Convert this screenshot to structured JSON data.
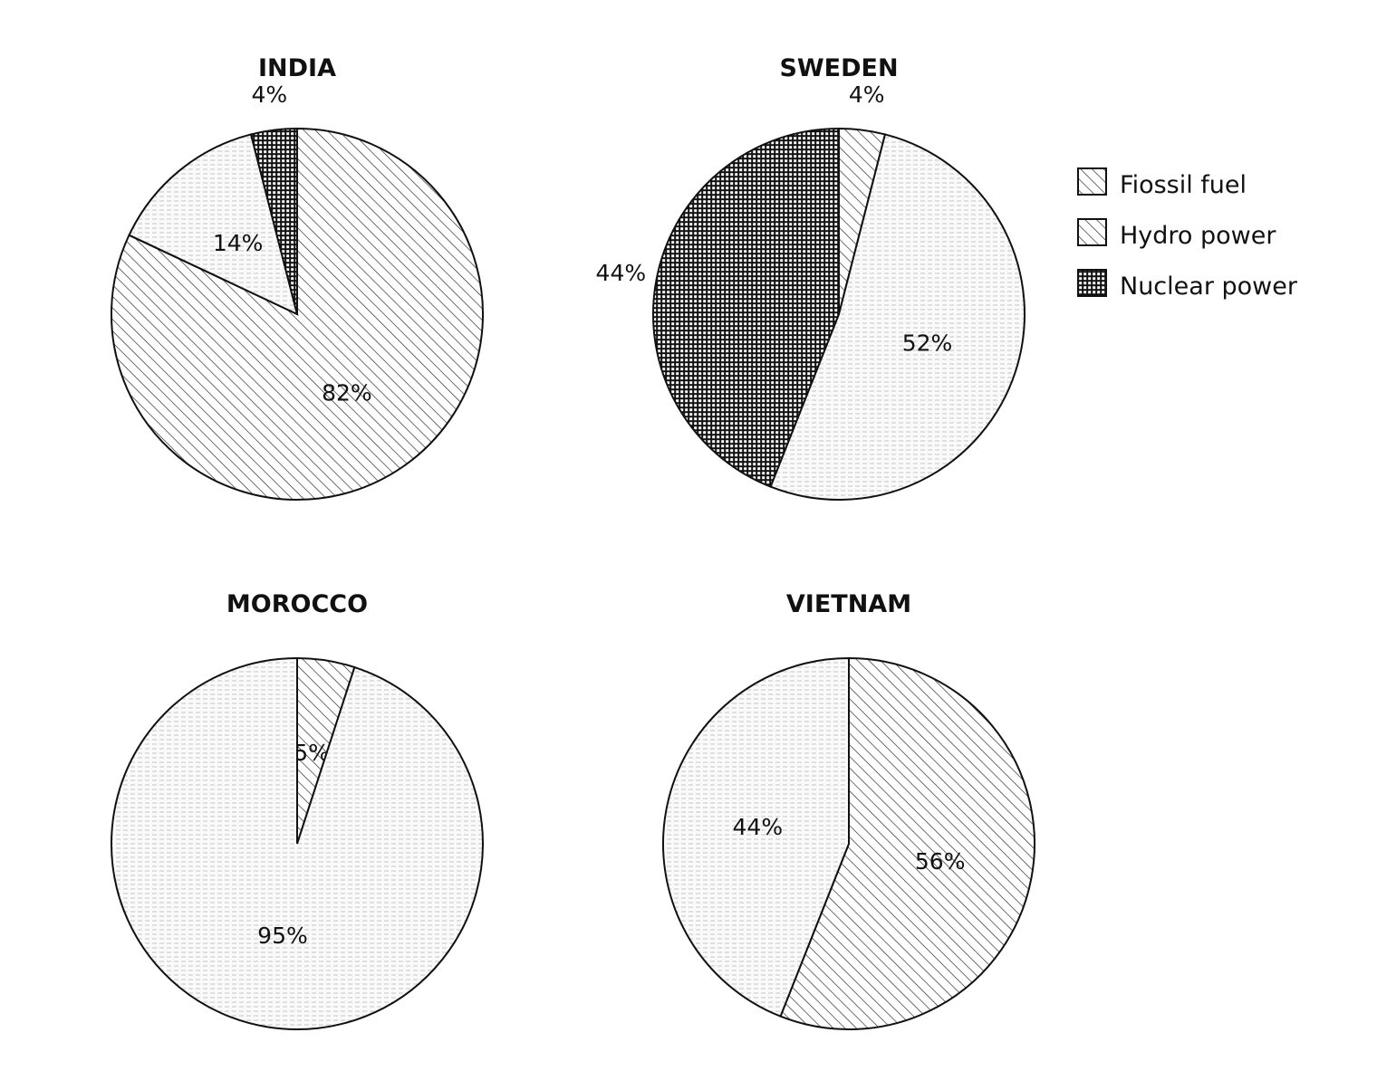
{
  "chart_data": [
    {
      "type": "pie",
      "title": "INDIA",
      "slices": [
        {
          "category": "Fiossil fuel",
          "value": 82,
          "label": "82%",
          "placement": "inside"
        },
        {
          "category": "Hydro power",
          "value": 14,
          "label": "14%",
          "placement": "inside"
        },
        {
          "category": "Nuclear power",
          "value": 4,
          "label": "4%",
          "placement": "outside"
        }
      ]
    },
    {
      "type": "pie",
      "title": "SWEDEN",
      "slices": [
        {
          "category": "Fiossil fuel",
          "value": 4,
          "label": "4%",
          "placement": "outside"
        },
        {
          "category": "Hydro power",
          "value": 52,
          "label": "52%",
          "placement": "inside"
        },
        {
          "category": "Nuclear power",
          "value": 44,
          "label": "44%",
          "placement": "outside"
        }
      ]
    },
    {
      "type": "pie",
      "title": "MOROCCO",
      "slices": [
        {
          "category": "Fiossil fuel",
          "value": 5,
          "label": "5%",
          "placement": "inside"
        },
        {
          "category": "Hydro power",
          "value": 95,
          "label": "95%",
          "placement": "inside"
        }
      ]
    },
    {
      "type": "pie",
      "title": "VIETNAM",
      "slices": [
        {
          "category": "Fiossil fuel",
          "value": 56,
          "label": "56%",
          "placement": "inside"
        },
        {
          "category": "Hydro power",
          "value": 44,
          "label": "44%",
          "placement": "inside"
        }
      ]
    }
  ],
  "legend": {
    "placement": "top-right",
    "items": [
      {
        "label": "Fiossil fuel",
        "swatch": "hatch"
      },
      {
        "label": "Hydro power",
        "swatch": "hatch"
      },
      {
        "label": "Nuclear power",
        "swatch": "grid"
      }
    ]
  },
  "fills": {
    "Fiossil fuel": "hatch",
    "Hydro power": "dots",
    "Nuclear power": "grid"
  }
}
